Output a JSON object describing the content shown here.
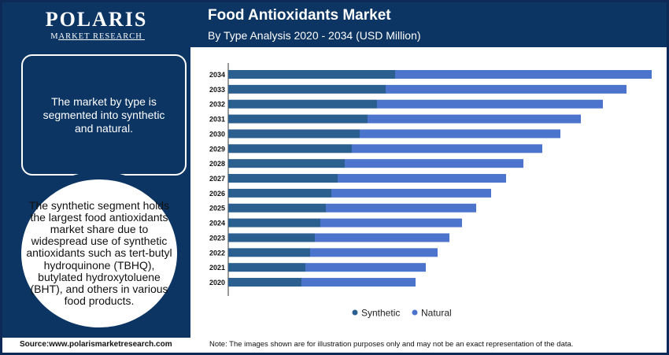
{
  "brand": {
    "name": "POLARIS",
    "tagline": "MARKET RESEARCH"
  },
  "header": {
    "title": "Food Antioxidants Market",
    "subtitle": "By Type Analysis 2020 - 2034 (USD Million)"
  },
  "sidebar": {
    "box_text": "The market by type is segmented into synthetic and natural.",
    "circle_text": "The synthetic segment holds the largest food antioxidants market share due to widespread use of synthetic antioxidants such as tert-butyl hydroquinone (TBHQ), butylated hydroxytoluene (BHT), and others in various food products."
  },
  "footer": {
    "source": "Source:www.polarismarketresearch.com",
    "note": "Note: The images shown are for illustration purposes only and may not be an exact representation of the data."
  },
  "colors": {
    "synthetic": "#2a5f8f",
    "natural": "#4d74cc",
    "dark": "#0c3563"
  },
  "chart_data": {
    "type": "bar",
    "orientation": "horizontal",
    "stacked": true,
    "categories": [
      "2034",
      "2033",
      "2032",
      "2031",
      "2030",
      "2029",
      "2028",
      "2027",
      "2026",
      "2025",
      "2024",
      "2023",
      "2022",
      "2021",
      "2020"
    ],
    "series": [
      {
        "name": "Synthetic",
        "values": [
          212,
          200,
          189,
          177,
          167,
          157,
          148,
          139,
          131,
          124,
          117,
          110,
          104,
          98,
          93
        ]
      },
      {
        "name": "Natural",
        "values": [
          326,
          306,
          287,
          271,
          255,
          242,
          227,
          214,
          203,
          191,
          180,
          171,
          162,
          153,
          145
        ]
      }
    ],
    "xlim": [
      0,
      540
    ],
    "grid": false,
    "legend": "bottom",
    "xlabel": "",
    "ylabel": ""
  }
}
